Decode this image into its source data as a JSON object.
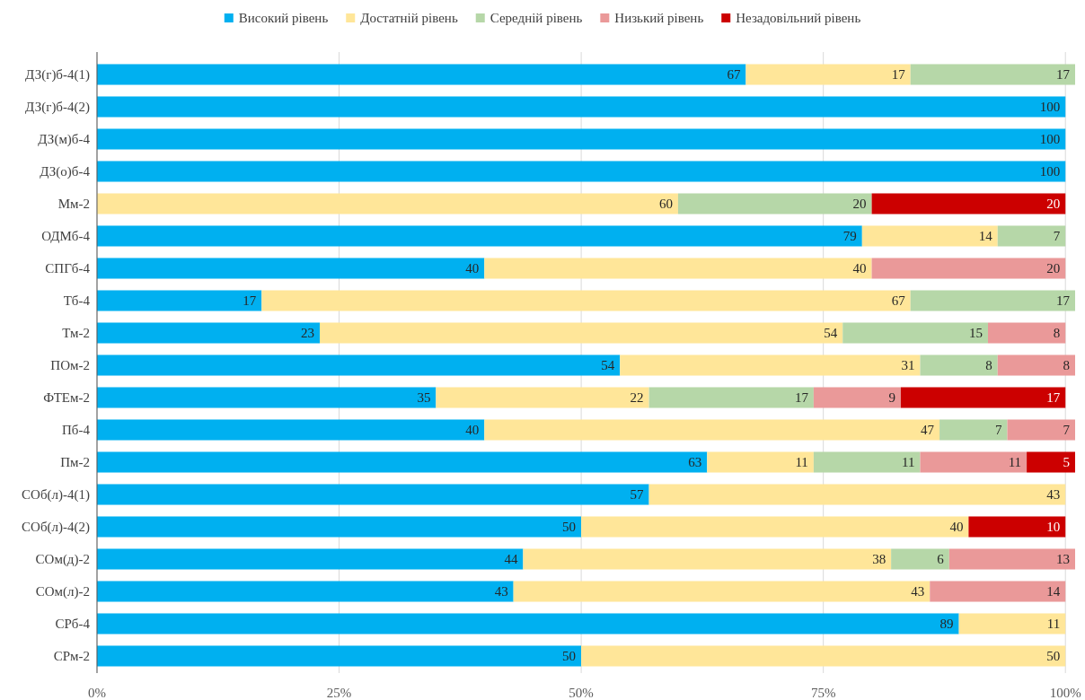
{
  "chart_data": {
    "type": "bar",
    "orientation": "horizontal",
    "stacked": true,
    "data_labels": true,
    "grid": "x",
    "legend": "top",
    "categories": [
      "ДЗ(г)б-4(1)",
      "ДЗ(г)б-4(2)",
      "ДЗ(м)б-4",
      "ДЗ(о)б-4",
      "Мм-2",
      "ОДМб-4",
      "СПГб-4",
      "Тб-4",
      "Тм-2",
      "ПОм-2",
      "ФТЕм-2",
      "Пб-4",
      "Пм-2",
      "СОб(л)-4(1)",
      "СОб(л)-4(2)",
      "СОм(д)-2",
      "СОм(л)-2",
      "СРб-4",
      "СРм-2"
    ],
    "series": [
      {
        "name": "Високий рівень",
        "color": "#00b0f0",
        "values": [
          67,
          100,
          100,
          100,
          null,
          79,
          40,
          17,
          23,
          54,
          35,
          40,
          63,
          57,
          50,
          44,
          43,
          89,
          50
        ]
      },
      {
        "name": "Достатній рівень",
        "color": "#ffe699",
        "values": [
          17,
          null,
          null,
          null,
          60,
          14,
          40,
          67,
          54,
          31,
          22,
          47,
          11,
          43,
          40,
          38,
          43,
          11,
          50
        ]
      },
      {
        "name": "Середній рівень",
        "color": "#b6d7a8",
        "values": [
          17,
          null,
          null,
          null,
          20,
          7,
          null,
          17,
          15,
          8,
          17,
          7,
          11,
          null,
          null,
          6,
          null,
          null,
          null
        ]
      },
      {
        "name": "Низький рівень",
        "color": "#ea9999",
        "values": [
          null,
          null,
          null,
          null,
          null,
          null,
          20,
          null,
          8,
          8,
          9,
          7,
          11,
          null,
          null,
          13,
          14,
          null,
          null
        ]
      },
      {
        "name": "Незадовільний рівень",
        "color": "#cc0000",
        "values": [
          null,
          null,
          null,
          null,
          20,
          null,
          null,
          null,
          null,
          null,
          17,
          null,
          5,
          null,
          10,
          null,
          null,
          null,
          null
        ]
      }
    ],
    "xlim": [
      0,
      101
    ],
    "xticks": [
      {
        "value": 0,
        "label": "0%"
      },
      {
        "value": 25,
        "label": "25%"
      },
      {
        "value": 50,
        "label": "50%"
      },
      {
        "value": 75,
        "label": "75%"
      },
      {
        "value": 100,
        "label": "100%"
      }
    ]
  }
}
